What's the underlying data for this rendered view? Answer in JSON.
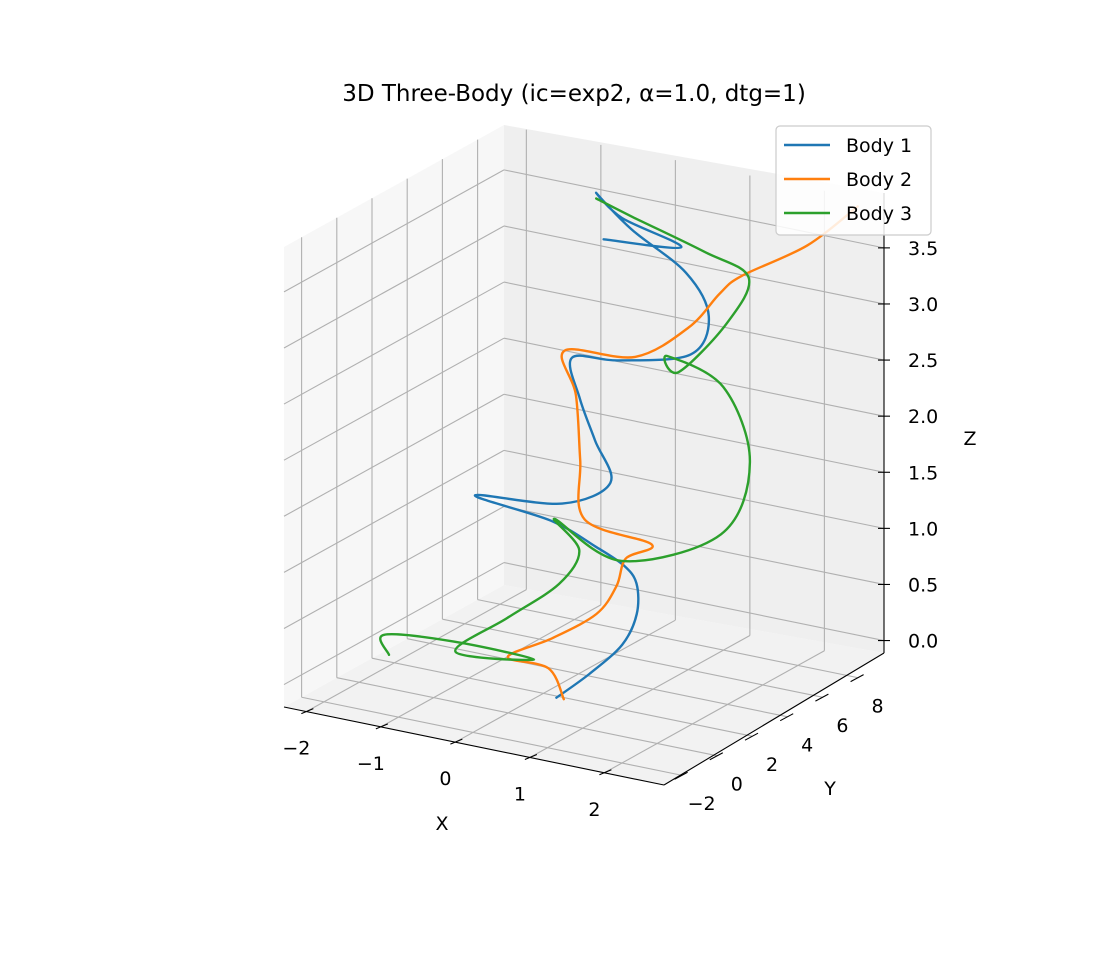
{
  "chart_data": {
    "type": "line",
    "projection": "3d",
    "title": "3D Three-Body (ic=exp2, α=1.0, dtg=1)",
    "xlabel": "X",
    "ylabel": "Y",
    "zlabel": "Z",
    "x_ticks": [
      "−2",
      "−1",
      "0",
      "1",
      "2"
    ],
    "y_ticks": [
      "−2",
      "0",
      "2",
      "4",
      "6",
      "8"
    ],
    "z_ticks": [
      "0.0",
      "0.5",
      "1.0",
      "1.5",
      "2.0",
      "2.5",
      "3.0",
      "3.5"
    ],
    "xlim": [
      -2.3,
      2.8
    ],
    "ylim": [
      -3,
      9.5
    ],
    "zlim": [
      -0.2,
      3.9
    ],
    "grid": true,
    "legend_placement": "top-right",
    "series": [
      {
        "name": "Body 1",
        "color": "#1f77b4",
        "points": [
          [
            0.6,
            0.2,
            0.0
          ],
          [
            0.9,
            0.8,
            0.2
          ],
          [
            1.2,
            1.4,
            0.45
          ],
          [
            1.3,
            1.8,
            0.7
          ],
          [
            1.25,
            2.0,
            0.95
          ],
          [
            1.1,
            1.9,
            1.1
          ],
          [
            0.8,
            1.6,
            1.25
          ],
          [
            0.2,
            1.6,
            1.4
          ],
          [
            -0.8,
            1.5,
            1.5
          ],
          [
            0.3,
            1.8,
            1.55
          ],
          [
            0.9,
            2.0,
            1.8
          ],
          [
            0.6,
            2.4,
            2.1
          ],
          [
            0.3,
            2.8,
            2.4
          ],
          [
            0.1,
            3.2,
            2.7
          ],
          [
            0.7,
            3.3,
            2.75
          ],
          [
            1.6,
            3.6,
            2.9
          ],
          [
            1.7,
            4.2,
            3.2
          ],
          [
            1.3,
            4.6,
            3.5
          ],
          [
            0.5,
            4.9,
            3.75
          ],
          [
            0.0,
            5.0,
            4.0
          ],
          [
            0.3,
            5.2,
            3.8
          ],
          [
            1.0,
            5.6,
            3.6
          ],
          [
            0.1,
            5.0,
            3.6
          ]
        ]
      },
      {
        "name": "Body 2",
        "color": "#ff7f0e",
        "points": [
          [
            0.7,
            0.2,
            0.0
          ],
          [
            0.4,
            0.6,
            0.2
          ],
          [
            -0.1,
            0.4,
            0.25
          ],
          [
            0.4,
            0.8,
            0.45
          ],
          [
            0.9,
            1.2,
            0.7
          ],
          [
            1.1,
            1.5,
            0.95
          ],
          [
            1.2,
            1.6,
            1.2
          ],
          [
            1.5,
            1.8,
            1.35
          ],
          [
            0.6,
            1.8,
            1.45
          ],
          [
            0.4,
            2.4,
            1.9
          ],
          [
            0.2,
            3.0,
            2.4
          ],
          [
            0.0,
            3.2,
            2.75
          ],
          [
            0.9,
            3.4,
            2.8
          ],
          [
            1.5,
            3.9,
            3.1
          ],
          [
            1.8,
            4.4,
            3.4
          ],
          [
            2.0,
            4.8,
            3.55
          ],
          [
            2.6,
            6.0,
            3.8
          ],
          [
            2.8,
            8.0,
            4.0
          ]
        ]
      },
      {
        "name": "Body 3",
        "color": "#2ca02c",
        "points": [
          [
            -1.6,
            0.0,
            0.1
          ],
          [
            -1.9,
            1.0,
            0.15
          ],
          [
            -0.8,
            0.3,
            0.3
          ],
          [
            0.3,
            0.2,
            0.3
          ],
          [
            -0.8,
            0.4,
            0.2
          ],
          [
            -0.2,
            0.8,
            0.55
          ],
          [
            0.4,
            1.2,
            0.9
          ],
          [
            0.6,
            1.5,
            1.2
          ],
          [
            0.2,
            1.8,
            1.4
          ],
          [
            1.0,
            2.2,
            1.1
          ],
          [
            2.1,
            3.2,
            1.4
          ],
          [
            2.3,
            4.0,
            2.0
          ],
          [
            1.8,
            4.6,
            2.55
          ],
          [
            1.0,
            4.8,
            2.7
          ],
          [
            1.2,
            4.6,
            2.6
          ],
          [
            1.8,
            4.8,
            3.1
          ],
          [
            2.0,
            5.2,
            3.5
          ],
          [
            1.4,
            5.2,
            3.65
          ],
          [
            0.5,
            5.0,
            3.85
          ],
          [
            0.0,
            5.0,
            3.95
          ]
        ]
      }
    ]
  }
}
